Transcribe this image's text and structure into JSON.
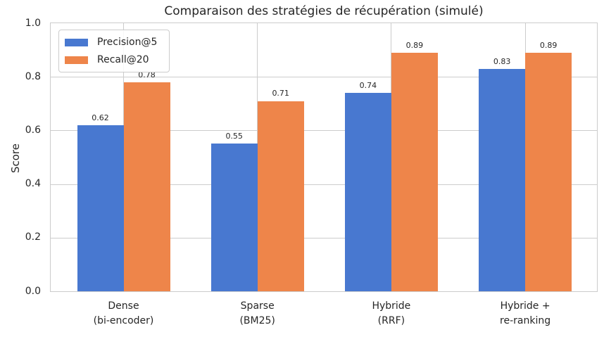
{
  "chart_data": {
    "type": "bar",
    "title": "Comparaison des stratégies de récupération (simulé)",
    "xlabel": "",
    "ylabel": "Score",
    "categories": [
      "Dense\n(bi-encoder)",
      "Sparse\n(BM25)",
      "Hybride\n(RRF)",
      "Hybride +\nre-ranking"
    ],
    "series": [
      {
        "name": "Precision@5",
        "color": "#4878d0",
        "values": [
          0.62,
          0.55,
          0.74,
          0.83
        ]
      },
      {
        "name": "Recall@20",
        "color": "#ee854a",
        "values": [
          0.78,
          0.71,
          0.89,
          0.89
        ]
      }
    ],
    "ylim": [
      0.0,
      1.0
    ],
    "yticks": [
      0.0,
      0.2,
      0.4,
      0.6,
      0.8,
      1.0
    ],
    "bar_value_labels": [
      "0.62",
      "0.78",
      "0.55",
      "0.71",
      "0.74",
      "0.89",
      "0.83",
      "0.89"
    ],
    "grid": true,
    "legend_position": "upper left",
    "colors": {
      "grid": "#cccccc",
      "axes_edge": "#cccccc",
      "text": "#262626",
      "background": "#ffffff"
    }
  }
}
